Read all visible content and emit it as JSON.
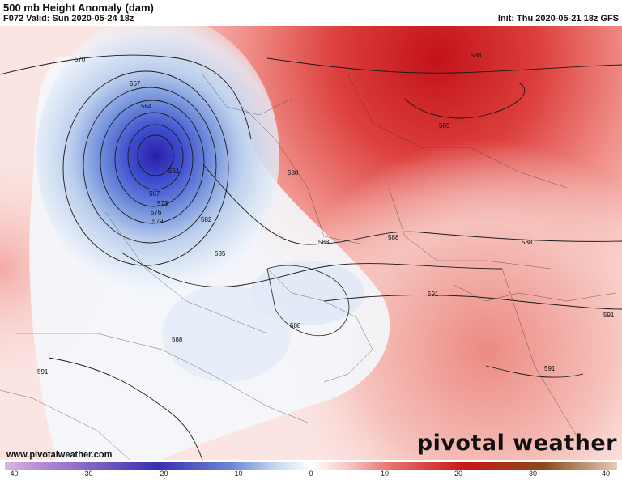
{
  "header": {
    "title": "500 mb Height Anomaly (dam)",
    "valid": "F072 Valid: Sun 2020-05-24 18z",
    "init": "Init: Thu 2020-05-21 18z GFS"
  },
  "footer": {
    "website": "www.pivotalweather.com",
    "brand": "pivotal weather"
  },
  "contour_labels": [
    "570",
    "567",
    "564",
    "561",
    "567",
    "573",
    "576",
    "579",
    "582",
    "585",
    "588",
    "588",
    "588",
    "588",
    "588",
    "588",
    "585",
    "588",
    "591",
    "591",
    "591",
    "591"
  ],
  "colorbar": {
    "ticks": [
      "-40",
      "-30",
      "-20",
      "-10",
      "0",
      "10",
      "20",
      "30",
      "40"
    ],
    "colors": {
      "neg_strong": "#3a2fb0",
      "neg_mid": "#6b86d6",
      "neg_light": "#c5d6ef",
      "neutral": "#ffffff",
      "pos_light": "#f6c7c4",
      "pos_mid": "#e7736c",
      "pos_strong": "#c81818",
      "pos_max": "#8a4a1a"
    }
  }
}
